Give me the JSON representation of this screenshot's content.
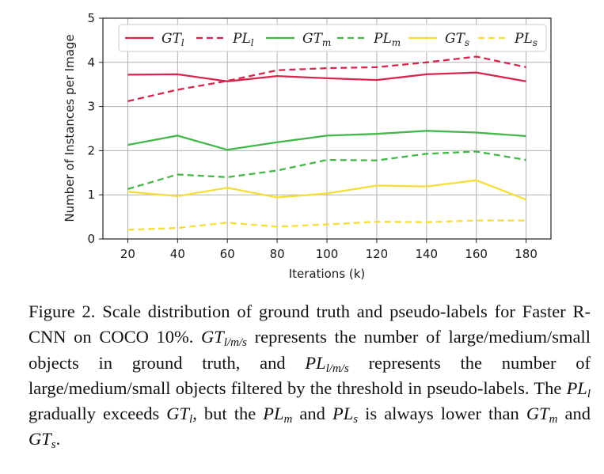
{
  "chart_data": {
    "type": "line",
    "title": "",
    "xlabel": "Iterations (k)",
    "ylabel": "Number of Instances per Image",
    "x": [
      20,
      40,
      60,
      80,
      100,
      120,
      140,
      160,
      180
    ],
    "xlim": [
      10,
      190
    ],
    "ylim": [
      0,
      5
    ],
    "yticks": [
      0,
      1,
      2,
      3,
      4,
      5
    ],
    "grid": true,
    "legend_position": "top",
    "series": [
      {
        "key": "GT_l",
        "base": "GT",
        "sub": "l",
        "color": "#d6264d",
        "dash": "solid",
        "values": [
          3.72,
          3.73,
          3.57,
          3.69,
          3.64,
          3.6,
          3.73,
          3.77,
          3.57
        ]
      },
      {
        "key": "PL_l",
        "base": "PL",
        "sub": "l",
        "color": "#d6264d",
        "dash": "dashed",
        "values": [
          3.12,
          3.38,
          3.58,
          3.82,
          3.87,
          3.89,
          4.0,
          4.13,
          3.89
        ]
      },
      {
        "key": "GT_m",
        "base": "GT",
        "sub": "m",
        "color": "#45b74a",
        "dash": "solid",
        "values": [
          2.13,
          2.34,
          2.02,
          2.19,
          2.34,
          2.38,
          2.45,
          2.41,
          2.33
        ]
      },
      {
        "key": "PL_m",
        "base": "PL",
        "sub": "m",
        "color": "#45b74a",
        "dash": "dashed",
        "values": [
          1.13,
          1.46,
          1.4,
          1.55,
          1.79,
          1.78,
          1.93,
          1.98,
          1.79
        ]
      },
      {
        "key": "GT_s",
        "base": "GT",
        "sub": "s",
        "color": "#f5dd3a",
        "dash": "solid",
        "values": [
          1.07,
          0.97,
          1.16,
          0.94,
          1.03,
          1.21,
          1.19,
          1.33,
          0.89
        ]
      },
      {
        "key": "PL_s",
        "base": "PL",
        "sub": "s",
        "color": "#f5dd3a",
        "dash": "dashed",
        "values": [
          0.21,
          0.25,
          0.37,
          0.28,
          0.33,
          0.39,
          0.38,
          0.42,
          0.42
        ]
      }
    ]
  },
  "caption": {
    "label": "Figure 2.",
    "text_1": " Scale distribution of ground truth and pseudo-labels for Faster R-CNN on COCO 10%. ",
    "m_gt": "GT",
    "m_sub_lms": "l/m/s",
    "text_2": " represents the number of large/medium/small objects in ground truth, and ",
    "m_pl": "PL",
    "text_3": " represents the number of large/medium/small objects filtered by the threshold in pseudo-labels. The ",
    "m_sub_l": "l",
    "text_4": " gradually exceeds ",
    "text_5": ", but the ",
    "m_sub_m": "m",
    "text_6": " and ",
    "m_sub_s": "s",
    "text_7": " is always lower than ",
    "text_8": " and ",
    "text_9": "."
  }
}
